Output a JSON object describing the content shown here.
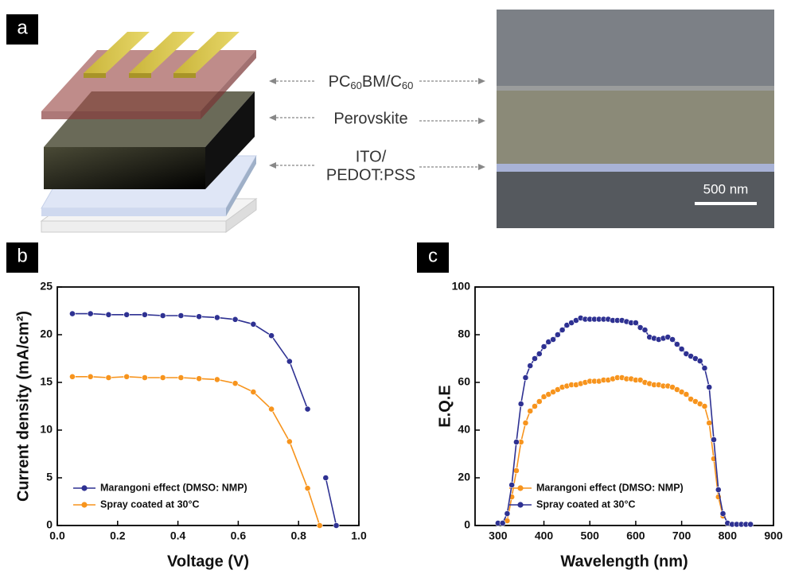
{
  "panel_a": {
    "label": "a",
    "layers": [
      {
        "parts": [
          "PC",
          "60",
          "BM/C",
          "60"
        ]
      },
      {
        "parts": [
          "Perovskite"
        ]
      },
      {
        "lines": [
          "ITO/",
          "PEDOT:PSS"
        ]
      }
    ],
    "scale_bar": "500 nm"
  },
  "chart_data": [
    {
      "type": "line",
      "panel_label": "b",
      "x_label": "Voltage (V)",
      "y_label": "Current density (mA/cm²)",
      "x": [
        0.05,
        0.11,
        0.17,
        0.23,
        0.29,
        0.35,
        0.41,
        0.47,
        0.53,
        0.59,
        0.65,
        0.71,
        0.77,
        0.83,
        0.87,
        0.89,
        0.925
      ],
      "series": [
        {
          "name": "Marangoni effect (DMSO: NMP)",
          "color": "#2e3192",
          "values": [
            22.2,
            22.2,
            22.1,
            22.1,
            22.1,
            22.0,
            22.0,
            21.9,
            21.8,
            21.6,
            21.1,
            19.9,
            17.2,
            12.2,
            null,
            5.0,
            0
          ]
        },
        {
          "name": "Spray coated at 30°C",
          "color": "#f7941d",
          "values": [
            15.6,
            15.6,
            15.5,
            15.6,
            15.5,
            15.5,
            15.5,
            15.4,
            15.3,
            14.9,
            14.0,
            12.2,
            8.8,
            3.9,
            0,
            null,
            null
          ]
        }
      ],
      "xlim": [
        0,
        1.0
      ],
      "xticks": [
        {
          "value": 0,
          "label": "0.0"
        },
        0.2,
        0.4,
        0.6,
        0.8,
        {
          "value": 1.0,
          "label": "1.0"
        }
      ],
      "ylim": [
        0,
        25
      ],
      "yticks": [
        0,
        5,
        10,
        15,
        20,
        25
      ]
    },
    {
      "type": "line",
      "panel_label": "c",
      "x_label": "Wavelength (nm)",
      "y_label": "E.Q.E",
      "x": [
        300,
        310,
        320,
        330,
        340,
        350,
        360,
        370,
        380,
        390,
        400,
        410,
        420,
        430,
        440,
        450,
        460,
        470,
        480,
        490,
        500,
        510,
        520,
        530,
        540,
        550,
        560,
        570,
        580,
        590,
        600,
        610,
        620,
        630,
        640,
        650,
        660,
        670,
        680,
        690,
        700,
        710,
        720,
        730,
        740,
        750,
        760,
        770,
        780,
        790,
        800,
        810,
        820,
        830,
        840,
        850
      ],
      "series": [
        {
          "name": "Marangoni effect (DMSO: NMP)",
          "color": "#f7941d",
          "values": [
            null,
            null,
            2,
            12,
            23,
            35,
            43,
            48,
            50,
            52,
            54,
            55,
            56,
            57,
            58,
            58.5,
            59,
            59,
            59.5,
            60,
            60.5,
            60.5,
            60.5,
            61,
            61,
            61.5,
            62,
            62,
            61.5,
            61.5,
            61,
            61,
            60,
            59.5,
            59,
            59,
            58.5,
            58.5,
            58,
            57,
            56,
            55,
            53,
            52,
            51,
            50,
            43,
            28,
            12,
            4,
            null,
            null,
            null,
            null,
            null,
            null
          ]
        },
        {
          "name": "Spray coated at 30°C",
          "color": "#2e3192",
          "values": [
            1,
            1,
            5,
            17,
            35,
            51,
            62,
            67,
            70,
            72,
            75,
            77,
            78,
            80,
            82,
            84,
            85,
            86,
            87,
            86.5,
            86.5,
            86.5,
            86.5,
            86.5,
            86.5,
            86,
            86,
            86,
            85.5,
            85,
            85,
            83,
            82,
            79,
            78.5,
            78,
            78.5,
            79,
            78,
            76,
            74,
            72,
            71,
            70,
            69,
            66,
            58,
            36,
            15,
            5,
            1,
            0.5,
            0.5,
            0.5,
            0.5,
            0.5
          ]
        }
      ],
      "xlim": [
        250,
        900
      ],
      "xticks": [
        300,
        400,
        500,
        600,
        700,
        800,
        900
      ],
      "ylim": [
        0,
        100
      ],
      "yticks": [
        0,
        20,
        40,
        60,
        80,
        100
      ]
    }
  ]
}
